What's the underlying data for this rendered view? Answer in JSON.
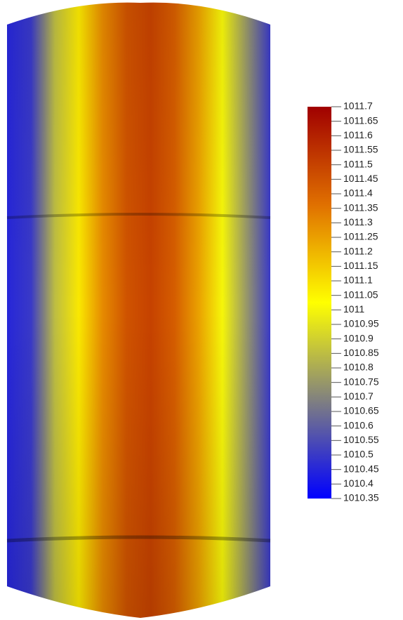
{
  "chart_data": {
    "type": "surface",
    "profile": [
      1010.45,
      1010.5,
      1010.85,
      1011.08,
      1011.3,
      1011.45,
      1011.5,
      1011.42,
      1011.25,
      1011.0,
      1010.75,
      1010.5
    ],
    "colormap": [
      "#0000ff",
      "#808080",
      "#ffff00",
      "#e07000",
      "#a00000"
    ],
    "clim": [
      1010.35,
      1011.7
    ],
    "cticks": [
      1011.7,
      1011.65,
      1011.6,
      1011.55,
      1011.5,
      1011.45,
      1011.4,
      1011.35,
      1011.3,
      1011.25,
      1011.2,
      1011.15,
      1011.1,
      1011.05,
      1011,
      1010.95,
      1010.9,
      1010.85,
      1010.8,
      1010.75,
      1010.7,
      1010.65,
      1010.6,
      1010.55,
      1010.5,
      1010.45,
      1010.4,
      1010.35
    ]
  }
}
